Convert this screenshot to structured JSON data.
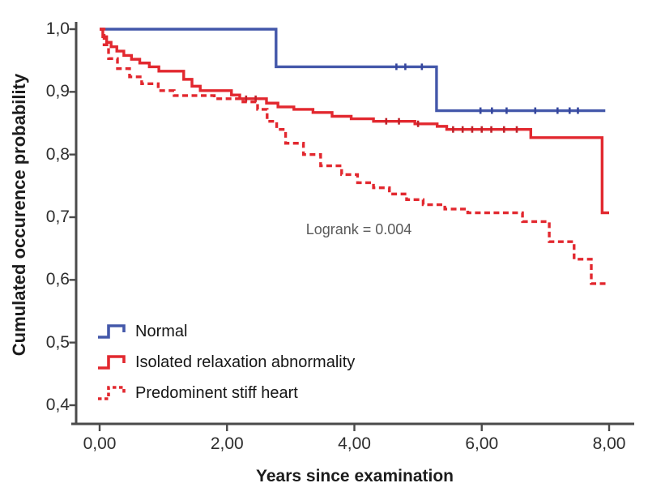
{
  "colors": {
    "axis": "#4a4a4a",
    "tick_label": "#2e2e2e",
    "normal_blue": "#4458aa",
    "abnormal_red": "#e2282f",
    "annotation_gray": "#5a5a5a",
    "background": "#ffffff"
  },
  "chart_data": {
    "type": "line",
    "subtype": "kaplan-meier-step-survival",
    "title": "",
    "xlabel": "Years since examination",
    "ylabel": "Cumulated occurence probability",
    "xlim": [
      0,
      8
    ],
    "ylim": [
      0.37,
      1.02
    ],
    "grid": false,
    "legend_position": "lower-left-inside",
    "xticks": {
      "values": [
        0,
        2,
        4,
        6,
        8
      ],
      "labels": [
        "0,00",
        "2,00",
        "4,00",
        "6,00",
        "8,00"
      ]
    },
    "yticks": {
      "values": [
        1.0,
        0.9,
        0.8,
        0.7,
        0.6,
        0.5,
        0.4
      ],
      "labels": [
        "1,0",
        "0,9",
        "0,8",
        "0,7",
        "0,6",
        "0,5",
        "0,4"
      ]
    },
    "annotations": [
      {
        "text": "Logrank = 0.004",
        "x": 3.2,
        "y": 0.675
      }
    ],
    "series": [
      {
        "name": "Normal",
        "color": "#4458aa",
        "censor_color": "#36479e",
        "dash": "solid",
        "end_x": 7.94,
        "steps": [
          [
            0,
            1.0
          ],
          [
            2.77,
            0.94
          ],
          [
            5.29,
            0.87
          ]
        ],
        "censors": [
          4.66,
          4.8,
          5.06,
          5.98,
          6.16,
          6.39,
          6.84,
          7.19,
          7.38,
          7.51
        ]
      },
      {
        "name": "Isolated relaxation abnormality",
        "color": "#e2282f",
        "censor_color": "#c02129",
        "dash": "solid",
        "end_x": 8.0,
        "steps": [
          [
            0,
            1.0
          ],
          [
            0.05,
            0.988
          ],
          [
            0.11,
            0.979
          ],
          [
            0.18,
            0.972
          ],
          [
            0.27,
            0.965
          ],
          [
            0.38,
            0.958
          ],
          [
            0.5,
            0.952
          ],
          [
            0.63,
            0.946
          ],
          [
            0.78,
            0.94
          ],
          [
            0.93,
            0.933
          ],
          [
            1.32,
            0.92
          ],
          [
            1.45,
            0.909
          ],
          [
            1.58,
            0.902
          ],
          [
            2.07,
            0.895
          ],
          [
            2.2,
            0.889
          ],
          [
            2.62,
            0.882
          ],
          [
            2.8,
            0.876
          ],
          [
            3.05,
            0.872
          ],
          [
            3.35,
            0.867
          ],
          [
            3.65,
            0.861
          ],
          [
            3.95,
            0.857
          ],
          [
            4.3,
            0.853
          ],
          [
            4.95,
            0.849
          ],
          [
            5.3,
            0.845
          ],
          [
            5.45,
            0.84
          ],
          [
            6.77,
            0.827
          ],
          [
            7.89,
            0.707
          ]
        ],
        "censors": [
          2.3,
          2.45,
          4.5,
          4.7,
          5.0,
          5.55,
          5.7,
          5.85,
          6.0,
          6.15,
          6.35,
          6.55
        ]
      },
      {
        "name": "Predominent stiff heart",
        "color": "#e2282f",
        "censor_color": "#c02129",
        "dash": "dashed",
        "end_x": 8.0,
        "steps": [
          [
            0,
            1.0
          ],
          [
            0.07,
            0.975
          ],
          [
            0.14,
            0.953
          ],
          [
            0.28,
            0.937
          ],
          [
            0.47,
            0.924
          ],
          [
            0.66,
            0.913
          ],
          [
            0.92,
            0.902
          ],
          [
            1.17,
            0.894
          ],
          [
            1.8,
            0.889
          ],
          [
            2.25,
            0.884
          ],
          [
            2.48,
            0.872
          ],
          [
            2.63,
            0.853
          ],
          [
            2.78,
            0.84
          ],
          [
            2.92,
            0.818
          ],
          [
            3.2,
            0.8
          ],
          [
            3.47,
            0.782
          ],
          [
            3.8,
            0.768
          ],
          [
            4.05,
            0.755
          ],
          [
            4.3,
            0.747
          ],
          [
            4.55,
            0.737
          ],
          [
            4.82,
            0.728
          ],
          [
            5.08,
            0.72
          ],
          [
            5.42,
            0.713
          ],
          [
            5.78,
            0.707
          ],
          [
            6.64,
            0.693
          ],
          [
            7.06,
            0.661
          ],
          [
            7.45,
            0.633
          ],
          [
            7.72,
            0.594
          ]
        ],
        "censors": []
      }
    ]
  }
}
